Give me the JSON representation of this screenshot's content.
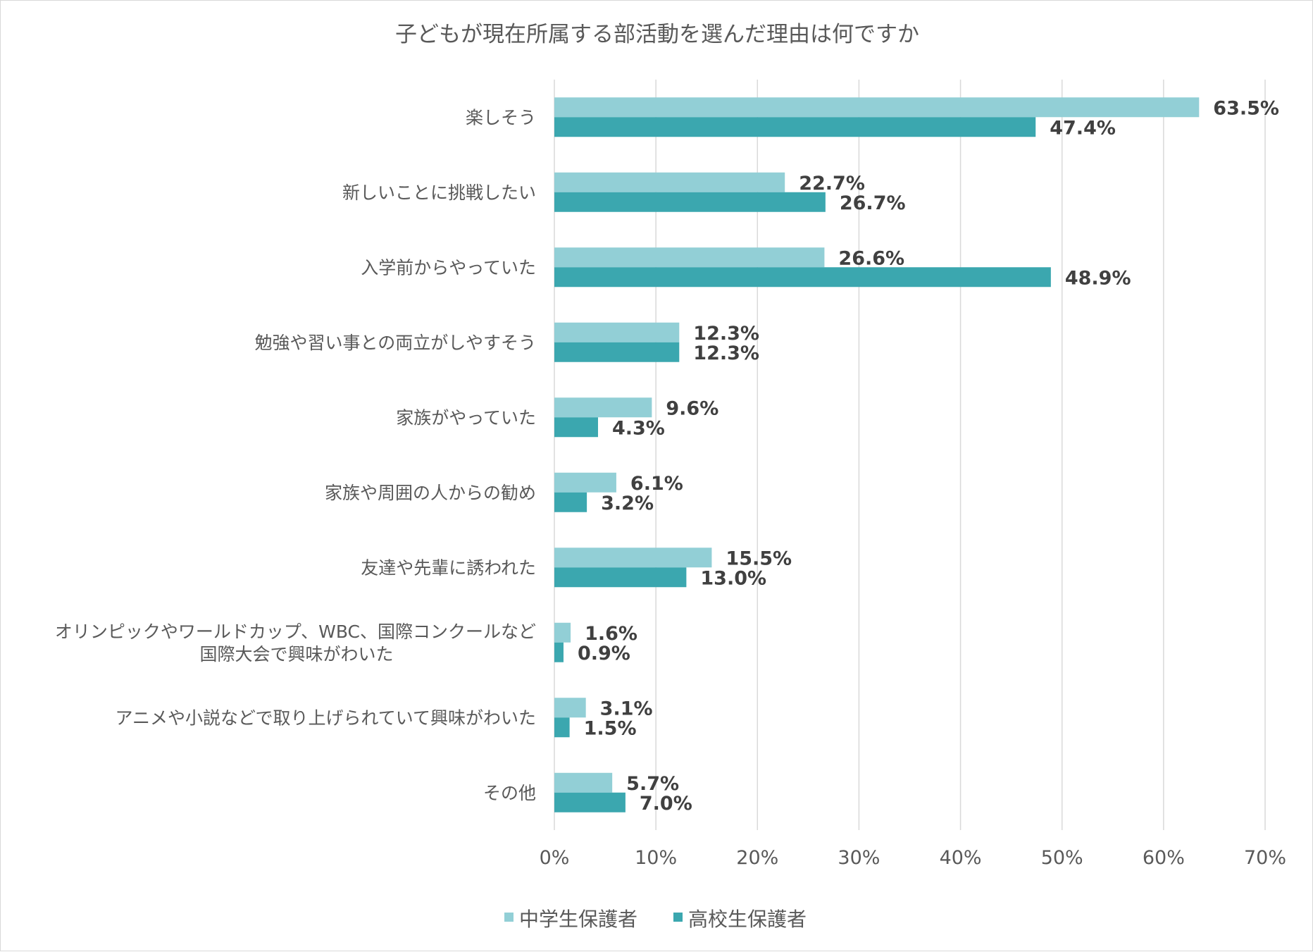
{
  "chart_data": {
    "type": "bar",
    "orientation": "horizontal",
    "title": "子どもが現在所属する部活動を選んだ理由は何ですか",
    "categories": [
      [
        "楽しそう"
      ],
      [
        "新しいことに挑戦したい"
      ],
      [
        "入学前からやっていた"
      ],
      [
        "勉強や習い事との両立がしやすそう"
      ],
      [
        "家族がやっていた"
      ],
      [
        "家族や周囲の人からの勧め"
      ],
      [
        "友達や先輩に誘われた"
      ],
      [
        "オリンピックやワールドカップ、WBC、国際コンクールなど",
        "国際大会で興味がわいた"
      ],
      [
        "アニメや小説などで取り上げられていて興味がわいた"
      ],
      [
        "その他"
      ]
    ],
    "series": [
      {
        "name": "中学生保護者",
        "color": "#92CFD6",
        "values": [
          63.5,
          22.7,
          26.6,
          12.3,
          9.6,
          6.1,
          15.5,
          1.6,
          3.1,
          5.7
        ],
        "labels": [
          "63.5%",
          "22.7%",
          "26.6%",
          "12.3%",
          "9.6%",
          "6.1%",
          "15.5%",
          "1.6%",
          "3.1%",
          "5.7%"
        ]
      },
      {
        "name": "高校生保護者",
        "color": "#3BA7AF",
        "values": [
          47.4,
          26.7,
          48.9,
          12.3,
          4.3,
          3.2,
          13.0,
          0.9,
          1.5,
          7.0
        ],
        "labels": [
          "47.4%",
          "26.7%",
          "48.9%",
          "12.3%",
          "4.3%",
          "3.2%",
          "13.0%",
          "0.9%",
          "1.5%",
          "7.0%"
        ]
      }
    ],
    "xlim": [
      0,
      70
    ],
    "xticks": [
      0,
      10,
      20,
      30,
      40,
      50,
      60,
      70
    ],
    "xtick_labels": [
      "0%",
      "10%",
      "20%",
      "30%",
      "40%",
      "50%",
      "60%",
      "70%"
    ],
    "gridlines": true,
    "legend": "bottom",
    "colors": {
      "grid": "#D9D9D9",
      "text": "#595959",
      "label": "#404040"
    }
  }
}
